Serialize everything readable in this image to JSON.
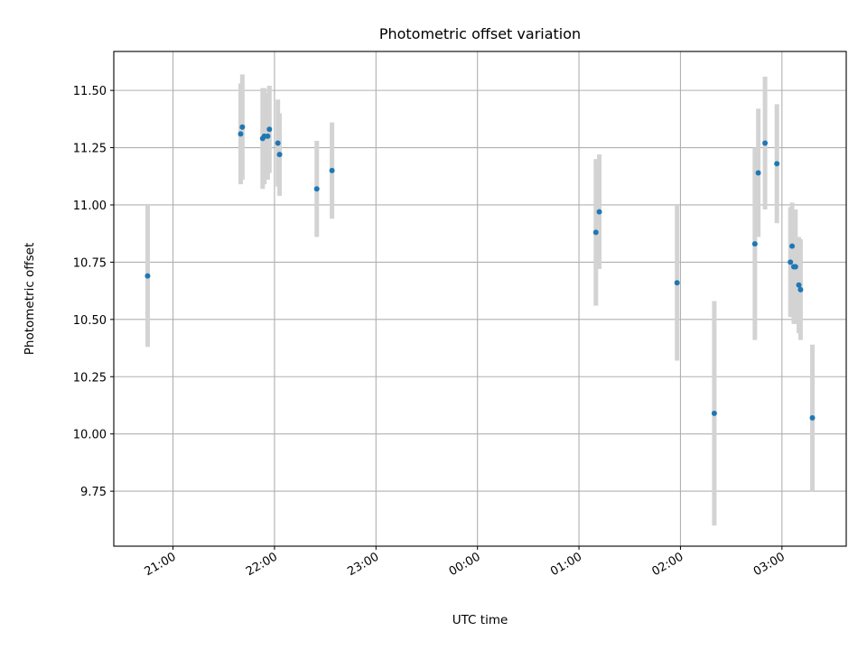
{
  "chart_data": {
    "type": "scatter",
    "title": "Photometric offset variation",
    "xlabel": "UTC time",
    "ylabel": "Photometric offset",
    "x_axis_type": "time",
    "xlim": [
      "20:25",
      "03:38"
    ],
    "ylim": [
      9.51,
      11.67
    ],
    "x_ticks": [
      "21:00",
      "22:00",
      "23:00",
      "00:00",
      "01:00",
      "02:00",
      "03:00"
    ],
    "y_ticks": [
      "9.75",
      "10.00",
      "10.25",
      "10.50",
      "10.75",
      "11.00",
      "11.25",
      "11.50"
    ],
    "grid": true,
    "marker_color": "#1f77b4",
    "errorbar_color": "#d3d3d3",
    "points": [
      {
        "t": "20:45",
        "y": 10.69,
        "yerr": 0.31
      },
      {
        "t": "21:40",
        "y": 11.31,
        "yerr": 0.22
      },
      {
        "t": "21:41",
        "y": 11.34,
        "yerr": 0.23
      },
      {
        "t": "21:53",
        "y": 11.29,
        "yerr": 0.22
      },
      {
        "t": "21:54",
        "y": 11.3,
        "yerr": 0.21
      },
      {
        "t": "21:56",
        "y": 11.3,
        "yerr": 0.19
      },
      {
        "t": "21:57",
        "y": 11.33,
        "yerr": 0.19
      },
      {
        "t": "22:02",
        "y": 11.27,
        "yerr": 0.19
      },
      {
        "t": "22:03",
        "y": 11.22,
        "yerr": 0.18
      },
      {
        "t": "22:25",
        "y": 11.07,
        "yerr": 0.21
      },
      {
        "t": "22:34",
        "y": 11.15,
        "yerr": 0.21
      },
      {
        "t": "01:10",
        "y": 10.88,
        "yerr": 0.32
      },
      {
        "t": "01:12",
        "y": 10.97,
        "yerr": 0.25
      },
      {
        "t": "01:58",
        "y": 10.66,
        "yerr": 0.34
      },
      {
        "t": "02:20",
        "y": 10.09,
        "yerr": 0.49
      },
      {
        "t": "02:44",
        "y": 10.83,
        "yerr": 0.42
      },
      {
        "t": "02:46",
        "y": 11.14,
        "yerr": 0.28
      },
      {
        "t": "02:50",
        "y": 11.27,
        "yerr": 0.29
      },
      {
        "t": "02:57",
        "y": 11.18,
        "yerr": 0.26
      },
      {
        "t": "03:05",
        "y": 10.75,
        "yerr": 0.24
      },
      {
        "t": "03:06",
        "y": 10.82,
        "yerr": 0.19
      },
      {
        "t": "03:07",
        "y": 10.73,
        "yerr": 0.25
      },
      {
        "t": "03:08",
        "y": 10.73,
        "yerr": 0.25
      },
      {
        "t": "03:10",
        "y": 10.65,
        "yerr": 0.21
      },
      {
        "t": "03:11",
        "y": 10.63,
        "yerr": 0.22
      },
      {
        "t": "03:18",
        "y": 10.07,
        "yerr": 0.32
      }
    ]
  }
}
